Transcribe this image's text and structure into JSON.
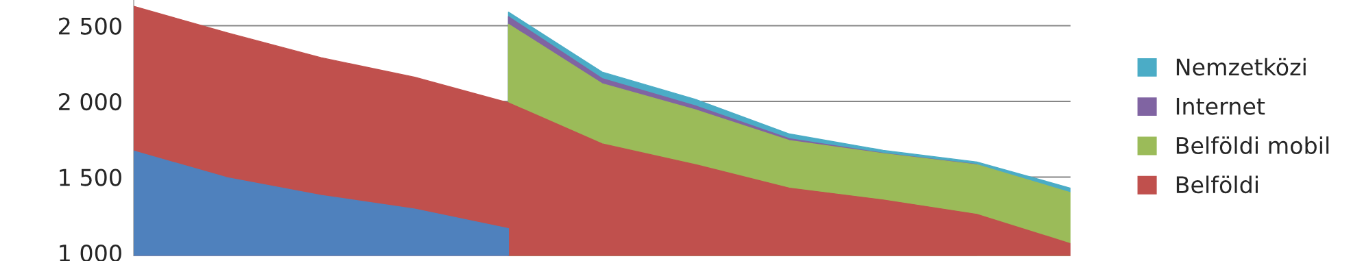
{
  "chart_data": {
    "type": "area",
    "categories": [
      null,
      null,
      null,
      null,
      null,
      null,
      null,
      null,
      null,
      null,
      null
    ],
    "series": [
      {
        "color": "#4f81bd",
        "values": [
          1672,
          1496,
          1379,
          1289,
          1160,
          null,
          null,
          null,
          null,
          null,
          null
        ]
      },
      {
        "name": "Belföldi",
        "color": "#c0504d",
        "values": [
          2629,
          2453,
          2289,
          2160,
          1991,
          1720,
          1582,
          1427,
          1349,
          1254,
          1060
        ]
      },
      {
        "name": "Belföldi mobil",
        "color": "#9bbb59",
        "values": [
          null,
          null,
          null,
          null,
          2510,
          2117,
          1944,
          1741,
          1655,
          1582,
          1397
        ]
      },
      {
        "name": "Internet",
        "color": "#8064a2",
        "values": [
          null,
          null,
          null,
          null,
          2560,
          2151,
          1970,
          1754,
          1658,
          1584,
          null
        ]
      },
      {
        "name": "Nemzetközi",
        "color": "#4bacc6",
        "values": [
          null,
          null,
          null,
          null,
          2590,
          2194,
          2013,
          1785,
          1677,
          1600,
          1427
        ]
      }
    ],
    "ylim": [
      980,
      2670
    ],
    "yticks": [
      {
        "value": 1000,
        "label": "1 000"
      },
      {
        "value": 1500,
        "label": "1 500"
      },
      {
        "value": 2000,
        "label": "2 000"
      },
      {
        "value": 2500,
        "label": "2 500"
      }
    ],
    "grid": "y",
    "legend": "right",
    "tick_labels": "y"
  }
}
